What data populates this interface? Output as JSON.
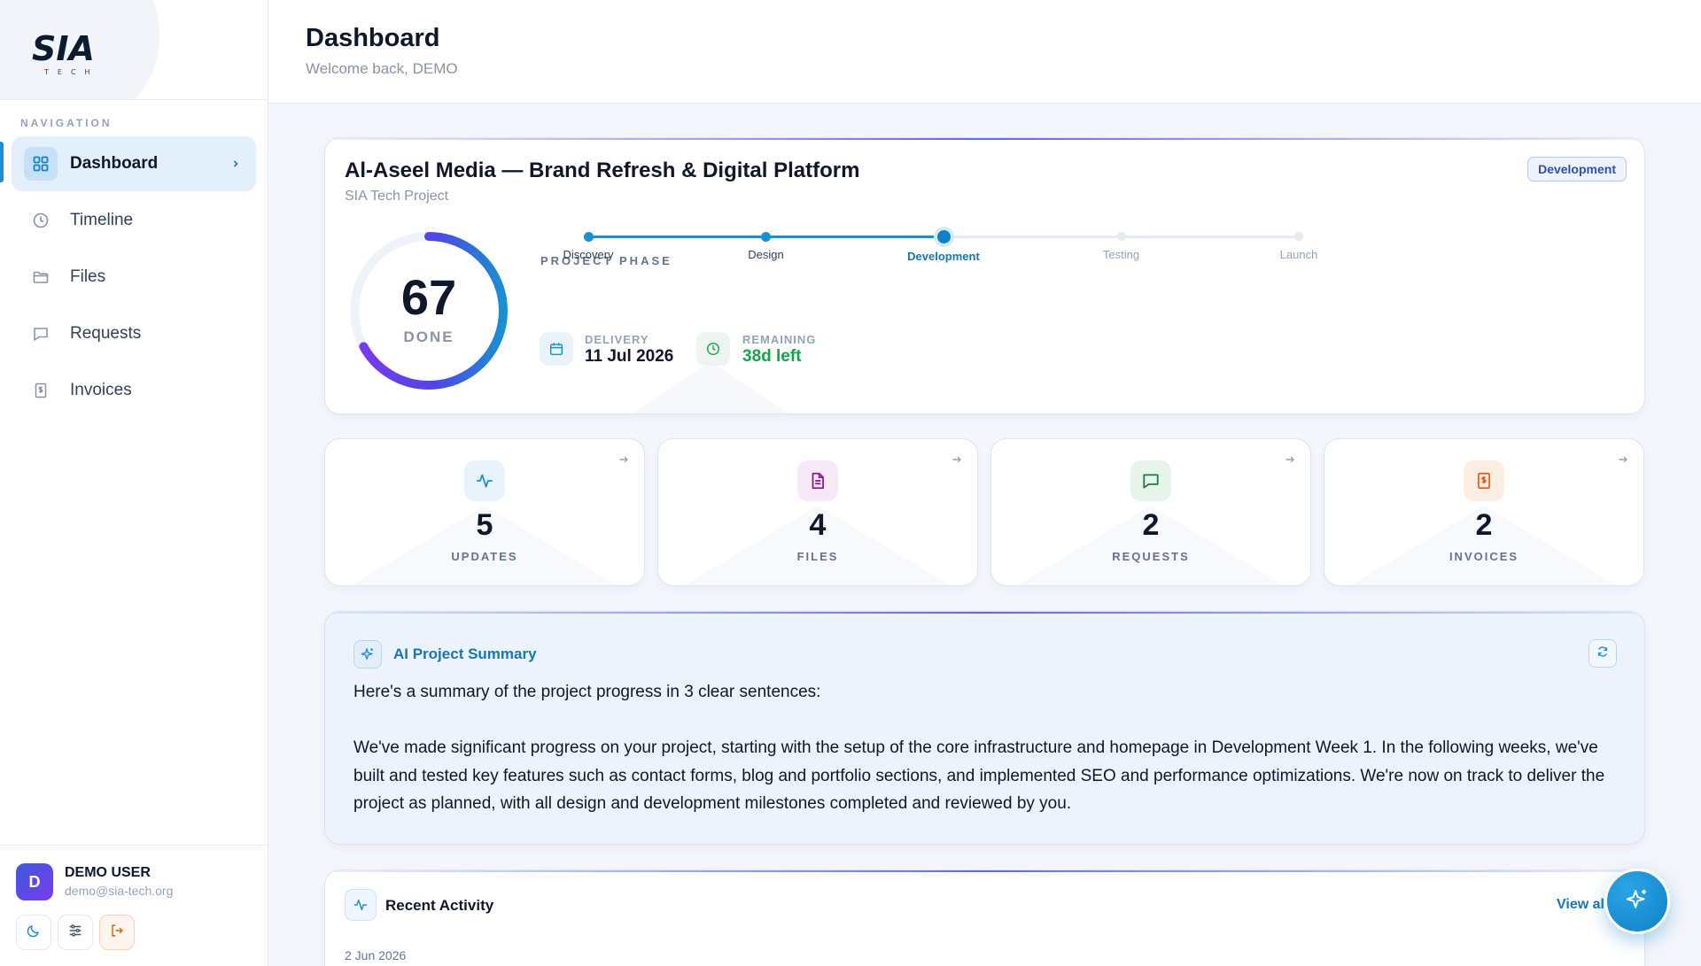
{
  "brand": {
    "logo_text": "SIA",
    "logo_sub": "TECH"
  },
  "sidebar": {
    "heading": "NAVIGATION",
    "items": [
      {
        "label": "Dashboard",
        "icon": "grid-icon",
        "active": true
      },
      {
        "label": "Timeline",
        "icon": "clock-icon",
        "active": false
      },
      {
        "label": "Files",
        "icon": "folder-icon",
        "active": false
      },
      {
        "label": "Requests",
        "icon": "message-icon",
        "active": false
      },
      {
        "label": "Invoices",
        "icon": "invoice-icon",
        "active": false
      }
    ]
  },
  "user": {
    "initial": "D",
    "name": "DEMO USER",
    "email": "demo@sia-tech.org",
    "actions": [
      "moon-icon",
      "sliders-icon",
      "logout-icon"
    ]
  },
  "header": {
    "title": "Dashboard",
    "subtitle": "Welcome back, DEMO"
  },
  "project": {
    "title": "Al-Aseel Media — Brand Refresh & Digital Platform",
    "subtitle": "SIA Tech Project",
    "badge": "Development",
    "progress_value": "67",
    "progress_label": "DONE",
    "progress_fraction": 0.67,
    "phase_heading": "PROJECT PHASE",
    "phases": [
      {
        "label": "Discovery",
        "state": "done"
      },
      {
        "label": "Design",
        "state": "done"
      },
      {
        "label": "Development",
        "state": "current"
      },
      {
        "label": "Testing",
        "state": "upcoming"
      },
      {
        "label": "Launch",
        "state": "upcoming"
      }
    ],
    "delivery_label": "DELIVERY",
    "delivery_value": "11 Jul 2026",
    "remaining_label": "REMAINING",
    "remaining_value": "38d left"
  },
  "stats": [
    {
      "value": "5",
      "label": "UPDATES",
      "icon": "activity-icon",
      "color": "#1a8fd3",
      "bg": "#e9f3fb"
    },
    {
      "value": "4",
      "label": "FILES",
      "icon": "file-icon",
      "color": "#86198f",
      "bg": "#f6e8f7"
    },
    {
      "value": "2",
      "label": "REQUESTS",
      "icon": "message-icon",
      "color": "#15803d",
      "bg": "#e6f4ea"
    },
    {
      "value": "2",
      "label": "INVOICES",
      "icon": "invoice-icon",
      "color": "#ea580c",
      "bg": "#fdeee4"
    }
  ],
  "ai_summary": {
    "title": "AI Project Summary",
    "intro": "Here's a summary of the project progress in 3 clear sentences:",
    "body": "We've made significant progress on your project, starting with the setup of the core infrastructure and homepage in Development Week 1. In the following weeks, we've built and tested key features such as contact forms, blog and portfolio sections, and implemented SEO and performance optimizations. We're now on track to deliver the project as planned, with all design and development milestones completed and reviewed by you."
  },
  "activity": {
    "title": "Recent Activity",
    "view_all": "View all",
    "first_date": "2 Jun 2026"
  },
  "colors": {
    "accent": "#1a8fd3",
    "accent_dark": "#1676b6",
    "success": "#16a34a",
    "badge_text": "#2f4fb2"
  }
}
